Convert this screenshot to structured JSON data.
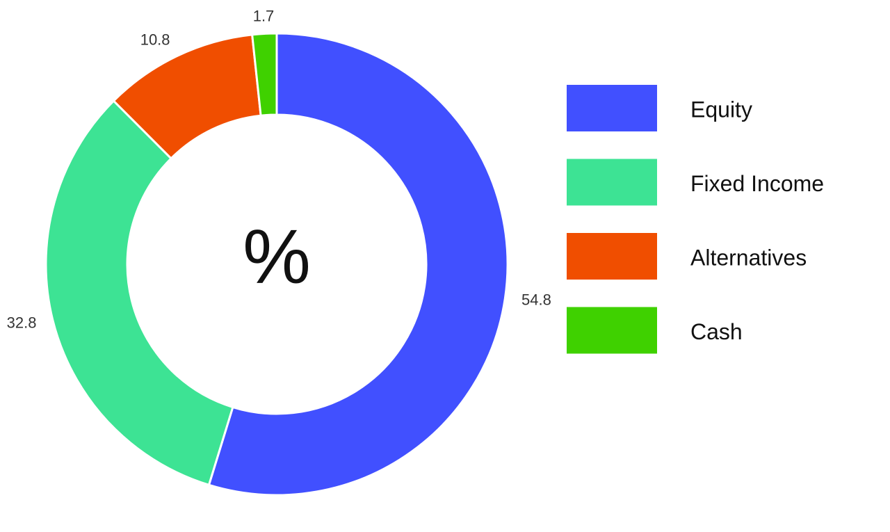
{
  "chart_data": {
    "type": "donut",
    "center_label": "%",
    "categories": [
      "Equity",
      "Fixed Income",
      "Alternatives",
      "Cash"
    ],
    "values": [
      54.8,
      32.8,
      10.8,
      1.7
    ],
    "colors": [
      "#4150ff",
      "#3de394",
      "#f04e00",
      "#3fd100"
    ],
    "legend": "right"
  }
}
